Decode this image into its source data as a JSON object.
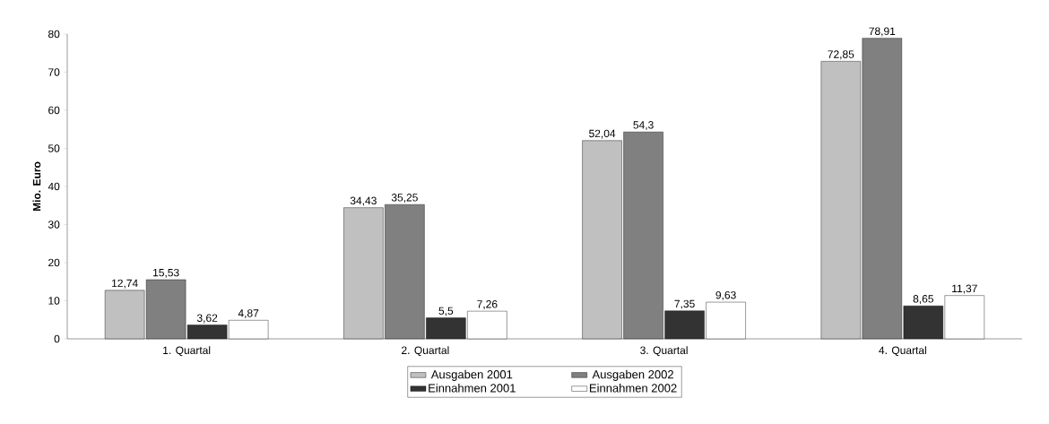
{
  "chart_data": {
    "type": "bar",
    "ylabel": "Mio. Euro",
    "categories": [
      "1. Quartal",
      "2. Quartal",
      "3. Quartal",
      "4. Quartal"
    ],
    "series": [
      {
        "name": "Ausgaben 2001",
        "color": "#c0c0c0",
        "values": [
          12.74,
          34.43,
          52.04,
          72.85
        ],
        "value_labels": [
          "12,74",
          "34,43",
          "52,04",
          "72,85"
        ]
      },
      {
        "name": "Ausgaben 2002",
        "color": "#808080",
        "values": [
          15.53,
          35.25,
          54.3,
          78.91
        ],
        "value_labels": [
          "15,53",
          "35,25",
          "54,3",
          "78,91"
        ]
      },
      {
        "name": "Einnahmen 2001",
        "color": "#333333",
        "values": [
          3.62,
          5.5,
          7.35,
          8.65
        ],
        "value_labels": [
          "3,62",
          "5,5",
          "7,35",
          "8,65"
        ]
      },
      {
        "name": "Einnahmen 2002",
        "color": "#ffffff",
        "values": [
          4.87,
          7.26,
          9.63,
          11.37
        ],
        "value_labels": [
          "4,87",
          "7,26",
          "9,63",
          "11,37"
        ]
      }
    ],
    "ylim": [
      0,
      80
    ],
    "yticks": [
      0,
      10,
      20,
      30,
      40,
      50,
      60,
      70,
      80
    ],
    "grid": false,
    "legend": "bottom"
  }
}
